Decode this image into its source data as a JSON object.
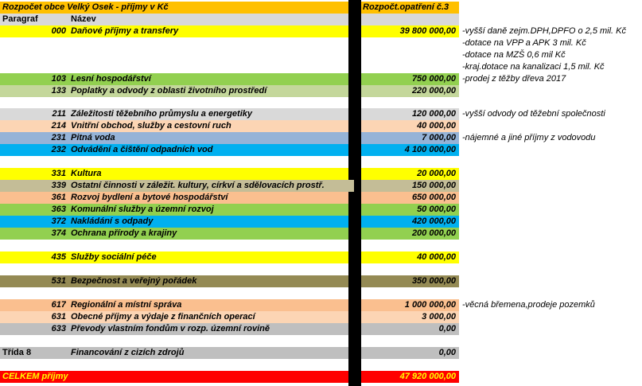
{
  "header": {
    "title": "Rozpočet obce Velký Osek - příjmy v Kč",
    "amount_col": "Rozpočt.opatření č.3",
    "col_paragraf": "Paragraf",
    "col_nazev": "Název"
  },
  "rows": [
    {
      "para": "000",
      "name": "Daňové příjmy a transfery",
      "amount": "39 800 000,00",
      "color": "#ffff00"
    },
    {
      "para": "103",
      "name": "Lesní hospodářství",
      "amount": "750 000,00",
      "color": "#92d050"
    },
    {
      "para": "133",
      "name": "Poplatky a odvody z oblasti životního prostředí",
      "amount": "220 000,00",
      "color": "#c4d79b"
    },
    {
      "para": "211",
      "name": "Záležitosti těžebního průmyslu a energetiky",
      "amount": "120 000,00",
      "color": "#d9d9d9"
    },
    {
      "para": "214",
      "name": "Vnitřní obchod, služby a cestovní ruch",
      "amount": "40 000,00",
      "color": "#fcd5b4"
    },
    {
      "para": "231",
      "name": "Pitná voda",
      "amount": "7 000,00",
      "color": "#95b3d7"
    },
    {
      "para": "232",
      "name": "Odvádění a čištění odpadních vod",
      "amount": "4 100 000,00",
      "color": "#00b0f0"
    },
    {
      "para": "331",
      "name": "Kultura",
      "amount": "20 000,00",
      "color": "#ffff00"
    },
    {
      "para": "339",
      "name": "Ostatní činnosti v záležit. kultury, církví a sdělovacích prostř.",
      "amount": "150 000,00",
      "color": "#c4bd97"
    },
    {
      "para": "361",
      "name": "Rozvoj bydlení a bytové hospodářství",
      "amount": "650 000,00",
      "color": "#fabf8f"
    },
    {
      "para": "363",
      "name": "Komunální služby a územní rozvoj",
      "amount": "50 000,00",
      "color": "#92d050"
    },
    {
      "para": "372",
      "name": "Nakládání s odpady",
      "amount": "420 000,00",
      "color": "#00b0f0"
    },
    {
      "para": "374",
      "name": "Ochrana přírody a krajiny",
      "amount": "200 000,00",
      "color": "#92d050"
    },
    {
      "para": "435",
      "name": "Služby sociální péče",
      "amount": "40 000,00",
      "color": "#ffff00"
    },
    {
      "para": "531",
      "name": "Bezpečnost a veřejný pořádek",
      "amount": "350 000,00",
      "color": "#948a54"
    },
    {
      "para": "617",
      "name": "Regionální a místní správa",
      "amount": "1 000 000,00",
      "color": "#fabf8f"
    },
    {
      "para": "631",
      "name": "Obecné příjmy a výdaje z finančních operací",
      "amount": "3 000,00",
      "color": "#fcd5b4"
    },
    {
      "para": "633",
      "name": "Převody vlastním fondům v rozp. územní rovině",
      "amount": "0,00",
      "color": "#bfbfbf"
    },
    {
      "para": "Třída 8",
      "name": "Financování z cizích zdrojů",
      "amount": "0,00",
      "color": "#bfbfbf"
    }
  ],
  "total": {
    "label": "CELKEM příjmy",
    "amount": "47 920 000,00",
    "color": "#ff0000",
    "text_color": "#ffff00"
  },
  "notes": [
    "-vyšší daně zejm.DPH,DPFO o 2,5 mil. Kč",
    "-dotace na VPP a APK 3 mil. Kč",
    "-dotace na MZŠ 0,6 mil Kč",
    "-kraj.dotace na kanalizaci 1,5 mil. Kč",
    "-prodej z těžby dřeva 2017",
    "-vyšší odvody od těžební společnosti",
    "-nájemné a jiné příjmy z vodovodu",
    "-věcná břemena,prodeje pozemků"
  ],
  "colors": {
    "title_bg": "#ffc000",
    "header_bg": "#d9d9d9"
  }
}
